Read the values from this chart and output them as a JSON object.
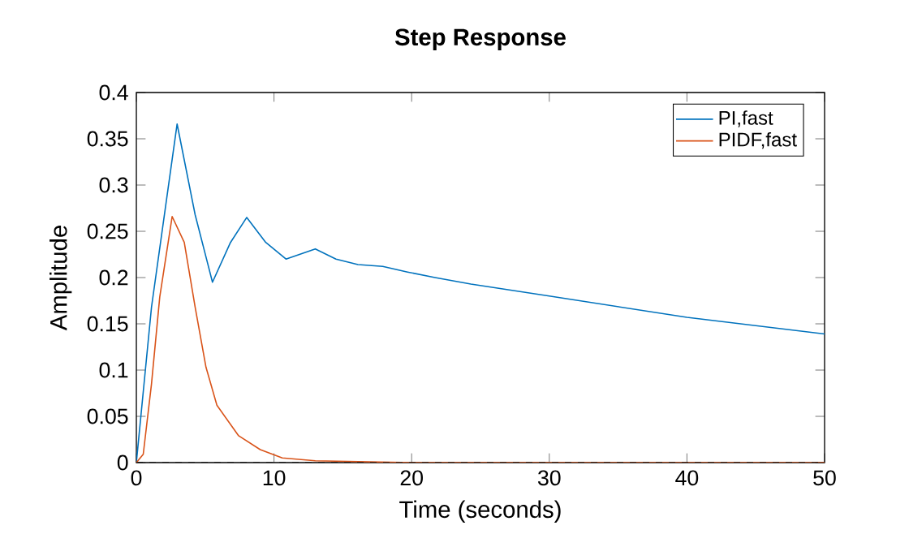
{
  "chart_data": {
    "type": "line",
    "title": "Step Response",
    "xlabel": "Time (seconds)",
    "ylabel": "Amplitude",
    "xlim": [
      0,
      50
    ],
    "ylim": [
      0,
      0.4
    ],
    "xticks": [
      0,
      10,
      20,
      30,
      40,
      50
    ],
    "yticks": [
      0,
      0.05,
      0.1,
      0.15,
      0.2,
      0.25,
      0.3,
      0.35,
      0.4
    ],
    "legend": "top right",
    "grid": false,
    "ref_lines": [
      {
        "axis": "y",
        "value": 0,
        "color": "#000000",
        "line_style": "dashed"
      }
    ],
    "series": [
      {
        "name": "PI,fast",
        "color": "#0072bd",
        "x": [
          0,
          1.1,
          2.96,
          4.27,
          5.53,
          6.84,
          8.02,
          9.4,
          10.87,
          13.0,
          14.5,
          16.1,
          17.9,
          19.7,
          21.7,
          24.3,
          30,
          40,
          50
        ],
        "values": [
          0,
          0.168,
          0.366,
          0.268,
          0.195,
          0.238,
          0.265,
          0.238,
          0.22,
          0.231,
          0.22,
          0.214,
          0.212,
          0.206,
          0.2,
          0.193,
          0.18,
          0.157,
          0.139
        ]
      },
      {
        "name": "PIDF,fast",
        "color": "#d95319",
        "x": [
          0,
          0.5,
          1.1,
          1.7,
          2.6,
          3.48,
          4.27,
          5.06,
          5.85,
          7.43,
          9.0,
          10.6,
          13,
          20,
          50
        ],
        "values": [
          0,
          0.009,
          0.085,
          0.179,
          0.266,
          0.238,
          0.168,
          0.103,
          0.062,
          0.029,
          0.014,
          0.005,
          0.002,
          0,
          0
        ]
      }
    ]
  }
}
